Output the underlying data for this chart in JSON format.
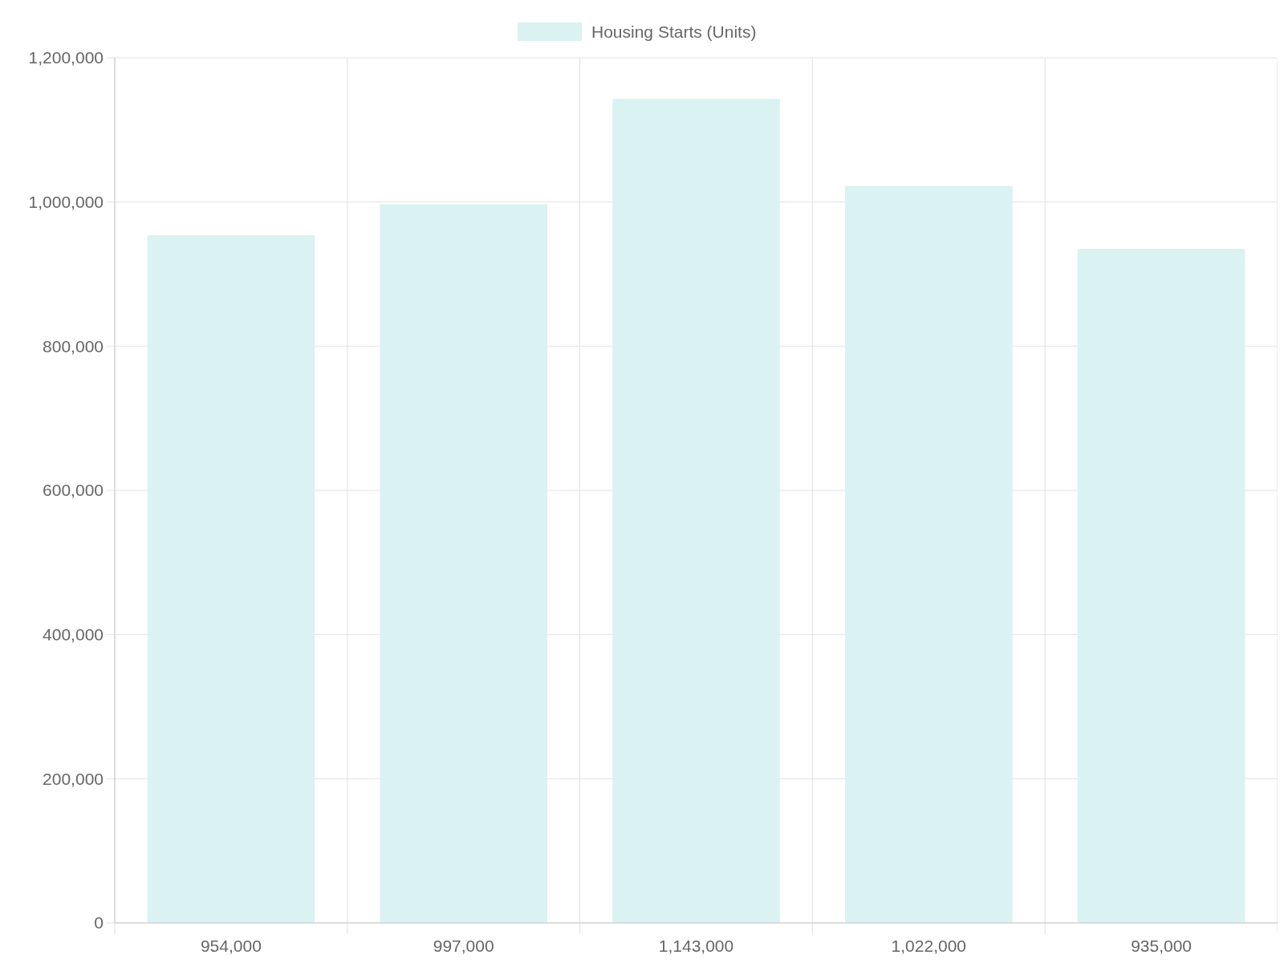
{
  "chart_data": {
    "type": "bar",
    "categories": [
      "954,000",
      "997,000",
      "1,143,000",
      "1,022,000",
      "935,000"
    ],
    "series": [
      {
        "name": "Housing Starts (Units)",
        "color": "#dbf2f2",
        "values": [
          954000,
          997000,
          1143000,
          1022000,
          935000
        ]
      }
    ],
    "ylim": [
      0,
      1200000
    ],
    "yticks": [
      {
        "value": 0,
        "label": "0"
      },
      {
        "value": 200000,
        "label": "200,000"
      },
      {
        "value": 400000,
        "label": "400,000"
      },
      {
        "value": 600000,
        "label": "600,000"
      },
      {
        "value": 800000,
        "label": "800,000"
      },
      {
        "value": 1000000,
        "label": "1,000,000"
      },
      {
        "value": 1200000,
        "label": "1,200,000"
      }
    ],
    "grid": true,
    "legend": "top"
  }
}
